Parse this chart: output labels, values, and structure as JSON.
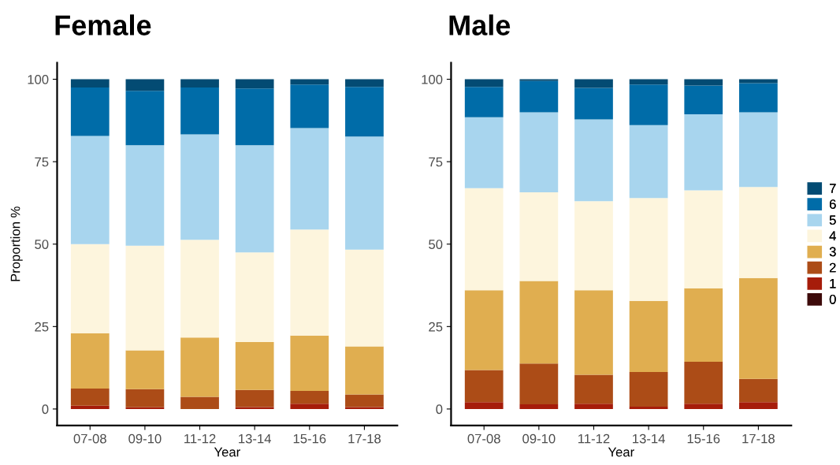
{
  "chart_data": [
    {
      "type": "bar",
      "title": "Female",
      "xlabel": "Year",
      "ylabel": "Proportion %",
      "stacked": true,
      "legend": "right",
      "grid": false,
      "categories": [
        "07-08",
        "09-10",
        "11-12",
        "13-14",
        "15-16",
        "17-18"
      ],
      "ylim": [
        -5,
        105
      ],
      "yticks": [
        0,
        25,
        50,
        75,
        100
      ],
      "series": [
        {
          "name": "0",
          "color": "#3d0a0a",
          "values": [
            0,
            0,
            0,
            0,
            0,
            0
          ]
        },
        {
          "name": "1",
          "color": "#a61c0a",
          "values": [
            1,
            0.5,
            0,
            0.6,
            1.6,
            0.6
          ]
        },
        {
          "name": "2",
          "color": "#ac4c17",
          "values": [
            5.2,
            5.5,
            3.7,
            5.2,
            3.9,
            3.8
          ]
        },
        {
          "name": "3",
          "color": "#e0ae50",
          "values": [
            16.8,
            11.8,
            18,
            14.5,
            16.8,
            14.6
          ]
        },
        {
          "name": "4",
          "color": "#fdf5dd",
          "values": [
            27,
            31.7,
            29.6,
            27.2,
            32.1,
            29.3
          ]
        },
        {
          "name": "5",
          "color": "#a8d5ee",
          "values": [
            32.8,
            30.5,
            32,
            32.5,
            30.8,
            34.3
          ]
        },
        {
          "name": "6",
          "color": "#006ca8",
          "values": [
            14.7,
            16.5,
            14.2,
            17.2,
            13.2,
            15.1
          ]
        },
        {
          "name": "7",
          "color": "#034b73",
          "values": [
            2.5,
            3.5,
            2.5,
            2.8,
            1.6,
            2.3
          ]
        }
      ]
    },
    {
      "type": "bar",
      "title": "Male",
      "xlabel": "Year",
      "stacked": true,
      "legend": "right",
      "grid": false,
      "categories": [
        "07-08",
        "09-10",
        "11-12",
        "13-14",
        "15-16",
        "17-18"
      ],
      "ylim": [
        -5,
        105
      ],
      "yticks": [
        0,
        25,
        50,
        75,
        100
      ],
      "series": [
        {
          "name": "0",
          "color": "#3d0a0a",
          "values": [
            0,
            0,
            0,
            0,
            0,
            0
          ]
        },
        {
          "name": "1",
          "color": "#a61c0a",
          "values": [
            2.1,
            1.4,
            1.6,
            0.7,
            1.6,
            2.1
          ]
        },
        {
          "name": "2",
          "color": "#ac4c17",
          "values": [
            9.7,
            12.4,
            8.8,
            10.5,
            12.7,
            7
          ]
        },
        {
          "name": "3",
          "color": "#e0ae50",
          "values": [
            24.2,
            25,
            25.6,
            21.6,
            22.3,
            30.6
          ]
        },
        {
          "name": "4",
          "color": "#fdf5dd",
          "values": [
            31,
            26.9,
            27,
            31.2,
            29.7,
            27.6
          ]
        },
        {
          "name": "5",
          "color": "#a8d5ee",
          "values": [
            21.5,
            24.3,
            24.8,
            22.1,
            23.1,
            22.7
          ]
        },
        {
          "name": "6",
          "color": "#006ca8",
          "values": [
            9.2,
            9.5,
            9.6,
            12.3,
            8.7,
            8.8
          ]
        },
        {
          "name": "7",
          "color": "#034b73",
          "values": [
            2.3,
            0.5,
            2.6,
            1.6,
            1.9,
            1.2
          ]
        }
      ]
    }
  ]
}
